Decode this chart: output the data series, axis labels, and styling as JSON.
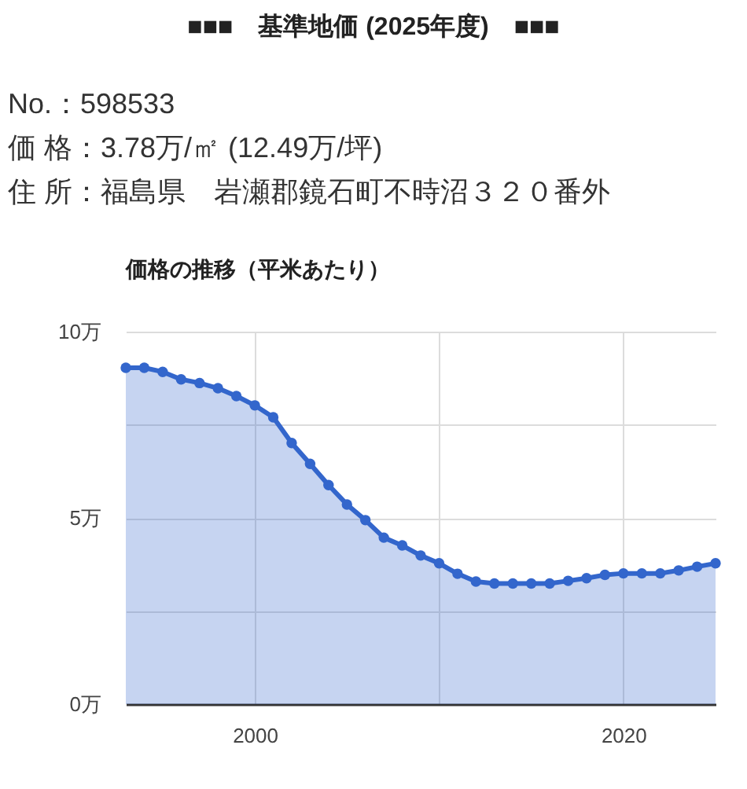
{
  "chart_data": {
    "type": "area",
    "title": "■■■　基準地価 (2025年度)　■■■",
    "subtitle": "価格の推移（平米あたり）",
    "annotations": [
      "No.：598533",
      "価 格：3.78万/㎡ (12.49万/坪)",
      "住 所：福島県　岩瀬郡鏡石町不時沼３２０番外"
    ],
    "x": [
      1993,
      1994,
      1995,
      1996,
      1997,
      1998,
      1999,
      2000,
      2001,
      2002,
      2003,
      2004,
      2005,
      2006,
      2007,
      2008,
      2009,
      2010,
      2011,
      2012,
      2013,
      2014,
      2015,
      2016,
      2017,
      2018,
      2019,
      2020,
      2021,
      2022,
      2023,
      2024,
      2025
    ],
    "series": [
      {
        "color": "#3366cc",
        "values": [
          9.03,
          9.03,
          8.92,
          8.72,
          8.62,
          8.48,
          8.27,
          8.02,
          7.7,
          7.01,
          6.45,
          5.88,
          5.36,
          4.94,
          4.47,
          4.26,
          3.99,
          3.78,
          3.5,
          3.29,
          3.24,
          3.24,
          3.24,
          3.24,
          3.31,
          3.38,
          3.47,
          3.51,
          3.51,
          3.51,
          3.59,
          3.69,
          3.78
        ]
      }
    ],
    "xlim": [
      1993,
      2025
    ],
    "xticks": [
      2000,
      {
        "value": 2010,
        "label": null
      },
      2020
    ],
    "ylim": [
      0,
      10
    ],
    "yticks": [
      {
        "value": 0,
        "label": "0万"
      },
      {
        "value": 2.5,
        "label": null
      },
      {
        "value": 5,
        "label": "5万"
      },
      {
        "value": 7.5,
        "label": null
      },
      {
        "value": 10,
        "label": "10万"
      }
    ],
    "grid": true,
    "marker": "circle"
  }
}
